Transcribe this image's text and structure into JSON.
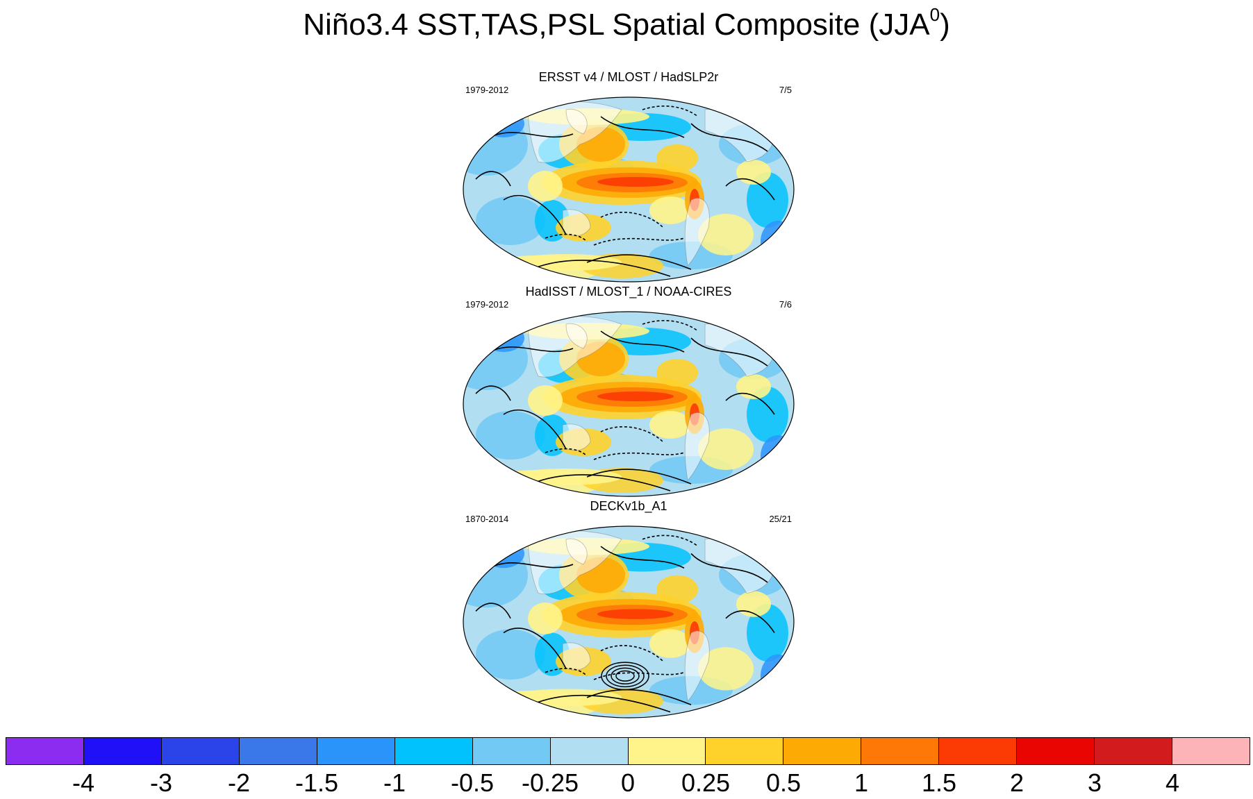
{
  "title": {
    "text": "Niño3.4 SST,TAS,PSL Spatial Composite (JJA",
    "superscript": "0",
    "suffix": ")"
  },
  "chart_data": [
    {
      "type": "heatmap",
      "title": "ERSST v4 / MLOST / HadSLP2r",
      "left_label": "1979-2012",
      "right_label": "7/5"
    },
    {
      "type": "heatmap",
      "title": "HadISST / MLOST_1 / NOAA-CIRES",
      "left_label": "1979-2012",
      "right_label": "7/6"
    },
    {
      "type": "heatmap",
      "title": "DECKv1b_A1",
      "left_label": "1870-2014",
      "right_label": "25/21"
    }
  ],
  "colorbar": {
    "labels": [
      "-4",
      "-3",
      "-2",
      "-1.5",
      "-1",
      "-0.5",
      "-0.25",
      "0",
      "0.25",
      "0.5",
      "1",
      "1.5",
      "2",
      "3",
      "4"
    ],
    "colors": [
      "#8c2cf0",
      "#2010f8",
      "#2a44ea",
      "#3a78ea",
      "#2b94fb",
      "#01c2fd",
      "#71c9f4",
      "#b2def2",
      "#fff48a",
      "#fed22b",
      "#feaa05",
      "#fd7806",
      "#fc3a04",
      "#e90501",
      "#d21b1d",
      "#fdb4b8"
    ]
  }
}
